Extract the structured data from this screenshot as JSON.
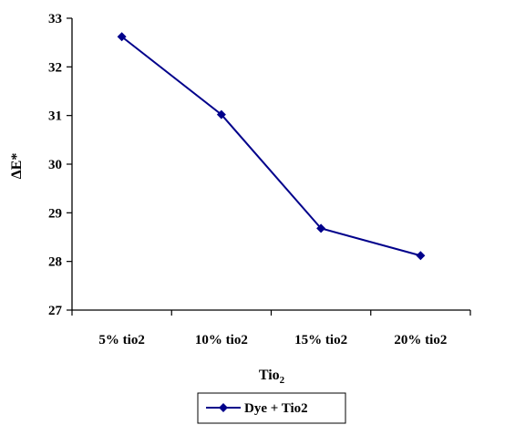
{
  "chart_data": {
    "type": "line",
    "categories": [
      "5% tio2",
      "10% tio2",
      "15% tio2",
      "20% tio2"
    ],
    "series": [
      {
        "name": "Dye + Tio2",
        "values": [
          32.62,
          31.02,
          28.68,
          28.12
        ],
        "color": "#00008B",
        "marker": "diamond"
      }
    ],
    "xlabel": {
      "main": "Tio",
      "sub": "2"
    },
    "ylabel": "ΔE*",
    "ylim": [
      27,
      33
    ],
    "yticks": [
      27,
      28,
      29,
      30,
      31,
      32,
      33
    ],
    "grid": false,
    "legend": "bottom"
  }
}
